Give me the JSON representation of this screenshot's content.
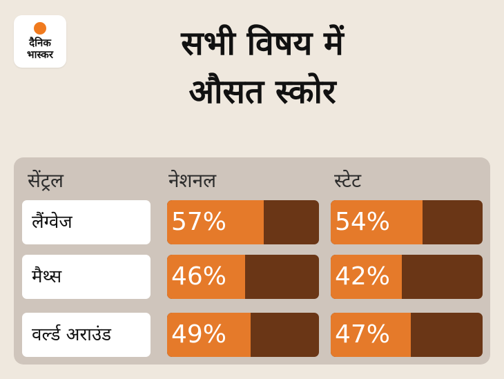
{
  "logo": {
    "line1": "दैनिक",
    "line2": "भास्कर",
    "dot_color": "#f07a1e"
  },
  "title": {
    "line1": "सभी विषय में",
    "line2": "औसत स्कोर"
  },
  "chart_data": {
    "type": "table",
    "columns": [
      "सेंट्रल",
      "नेशनल",
      "स्टेट"
    ],
    "rows": [
      {
        "label": "लैंग्वेज",
        "national": 57,
        "state": 54
      },
      {
        "label": "मैथ्स",
        "national": 46,
        "state": 42
      },
      {
        "label": "वर्ल्ड अराउंड",
        "national": 49,
        "state": 47
      }
    ],
    "value_labels": {
      "national": [
        "57%",
        "46%",
        "49%"
      ],
      "state": [
        "54%",
        "42%",
        "47%"
      ]
    },
    "colors": {
      "fill": "#e57a2a",
      "track": "#6a3616",
      "panel": "#cfc5bc"
    }
  }
}
